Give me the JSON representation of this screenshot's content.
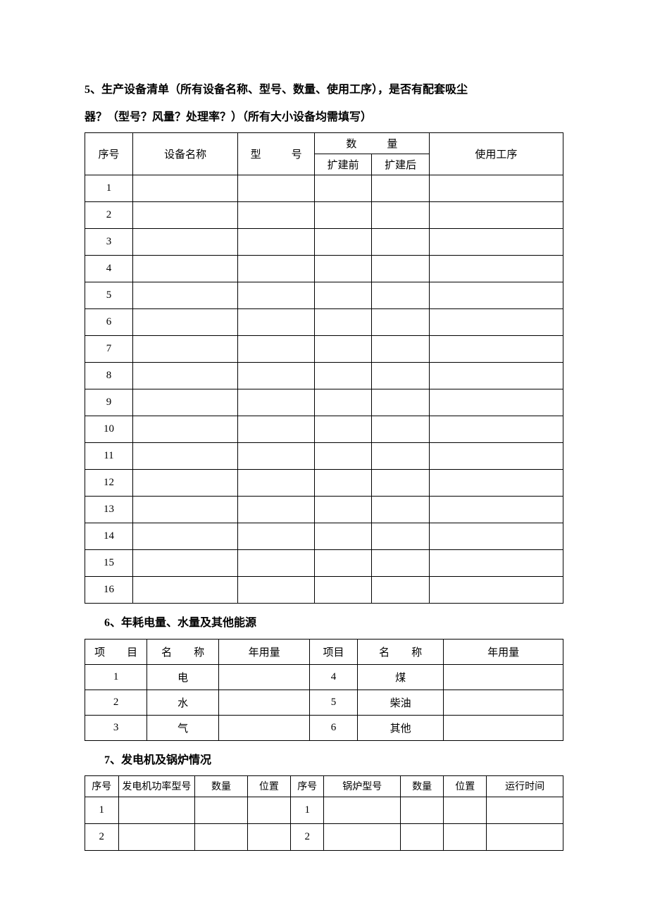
{
  "section5": {
    "title_line1": "5、生产设备清单（所有设备名称、型号、数量、使用工序），是否有配套吸尘",
    "title_line2": "器？（型号？风量？处理率？）（所有大小设备均需填写）",
    "table": {
      "type": "table",
      "border_color": "#000000",
      "background_color": "#ffffff",
      "text_color": "#000000",
      "font_size": 15,
      "columns": [
        {
          "key": "seq",
          "label": "序号",
          "width_pct": 10
        },
        {
          "key": "name",
          "label": "设备名称",
          "width_pct": 22
        },
        {
          "key": "model",
          "label": "型　号",
          "width_pct": 16
        },
        {
          "key": "qty_group",
          "label": "数　量",
          "children": [
            {
              "key": "before",
              "label": "扩建前",
              "width_pct": 12
            },
            {
              "key": "after",
              "label": "扩建后",
              "width_pct": 12
            }
          ]
        },
        {
          "key": "process",
          "label": "使用工序",
          "width_pct": 28
        }
      ],
      "rows": [
        {
          "seq": "1",
          "name": "",
          "model": "",
          "before": "",
          "after": "",
          "process": ""
        },
        {
          "seq": "2",
          "name": "",
          "model": "",
          "before": "",
          "after": "",
          "process": ""
        },
        {
          "seq": "3",
          "name": "",
          "model": "",
          "before": "",
          "after": "",
          "process": ""
        },
        {
          "seq": "4",
          "name": "",
          "model": "",
          "before": "",
          "after": "",
          "process": ""
        },
        {
          "seq": "5",
          "name": "",
          "model": "",
          "before": "",
          "after": "",
          "process": ""
        },
        {
          "seq": "6",
          "name": "",
          "model": "",
          "before": "",
          "after": "",
          "process": ""
        },
        {
          "seq": "7",
          "name": "",
          "model": "",
          "before": "",
          "after": "",
          "process": ""
        },
        {
          "seq": "8",
          "name": "",
          "model": "",
          "before": "",
          "after": "",
          "process": ""
        },
        {
          "seq": "9",
          "name": "",
          "model": "",
          "before": "",
          "after": "",
          "process": ""
        },
        {
          "seq": "10",
          "name": "",
          "model": "",
          "before": "",
          "after": "",
          "process": ""
        },
        {
          "seq": "11",
          "name": "",
          "model": "",
          "before": "",
          "after": "",
          "process": ""
        },
        {
          "seq": "12",
          "name": "",
          "model": "",
          "before": "",
          "after": "",
          "process": ""
        },
        {
          "seq": "13",
          "name": "",
          "model": "",
          "before": "",
          "after": "",
          "process": ""
        },
        {
          "seq": "14",
          "name": "",
          "model": "",
          "before": "",
          "after": "",
          "process": ""
        },
        {
          "seq": "15",
          "name": "",
          "model": "",
          "before": "",
          "after": "",
          "process": ""
        },
        {
          "seq": "16",
          "name": "",
          "model": "",
          "before": "",
          "after": "",
          "process": ""
        }
      ]
    }
  },
  "section6": {
    "title": "6、年耗电量、水量及其他能源",
    "table": {
      "type": "table",
      "border_color": "#000000",
      "background_color": "#ffffff",
      "text_color": "#000000",
      "font_size": 15,
      "columns": [
        {
          "key": "idx_l",
          "label": "项　目",
          "width_pct": 13
        },
        {
          "key": "name_l",
          "label": "名　称",
          "width_pct": 15
        },
        {
          "key": "usage_l",
          "label": "年用量",
          "width_pct": 19
        },
        {
          "key": "idx_r",
          "label": "项目",
          "width_pct": 10
        },
        {
          "key": "name_r",
          "label": "名　称",
          "width_pct": 18
        },
        {
          "key": "usage_r",
          "label": "年用量",
          "width_pct": 25
        }
      ],
      "rows": [
        {
          "idx_l": "1",
          "name_l": "电",
          "usage_l": "",
          "idx_r": "4",
          "name_r": "煤",
          "usage_r": ""
        },
        {
          "idx_l": "2",
          "name_l": "水",
          "usage_l": "",
          "idx_r": "5",
          "name_r": "柴油",
          "usage_r": ""
        },
        {
          "idx_l": "3",
          "name_l": "气",
          "usage_l": "",
          "idx_r": "6",
          "name_r": "其他",
          "usage_r": ""
        }
      ]
    }
  },
  "section7": {
    "title": "7、发电机及锅炉情况",
    "table": {
      "type": "table",
      "border_color": "#000000",
      "background_color": "#ffffff",
      "text_color": "#000000",
      "font_size": 14,
      "columns": [
        {
          "key": "seq_l",
          "label": "序号",
          "width_pct": 7
        },
        {
          "key": "gen_model",
          "label": "发电机功率型号",
          "width_pct": 16
        },
        {
          "key": "gen_qty",
          "label": "数量",
          "width_pct": 11
        },
        {
          "key": "gen_pos",
          "label": "位置",
          "width_pct": 9
        },
        {
          "key": "seq_r",
          "label": "序号",
          "width_pct": 7
        },
        {
          "key": "boiler_model",
          "label": "锅炉型号",
          "width_pct": 16
        },
        {
          "key": "boiler_qty",
          "label": "数量",
          "width_pct": 9
        },
        {
          "key": "boiler_pos",
          "label": "位置",
          "width_pct": 9
        },
        {
          "key": "runtime",
          "label": "运行时间",
          "width_pct": 16
        }
      ],
      "rows": [
        {
          "seq_l": "1",
          "gen_model": "",
          "gen_qty": "",
          "gen_pos": "",
          "seq_r": "1",
          "boiler_model": "",
          "boiler_qty": "",
          "boiler_pos": "",
          "runtime": ""
        },
        {
          "seq_l": "2",
          "gen_model": "",
          "gen_qty": "",
          "gen_pos": "",
          "seq_r": "2",
          "boiler_model": "",
          "boiler_qty": "",
          "boiler_pos": "",
          "runtime": ""
        }
      ]
    }
  }
}
